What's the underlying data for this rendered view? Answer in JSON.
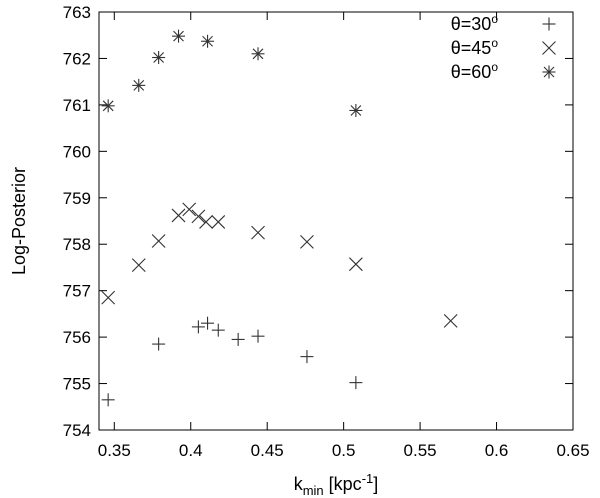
{
  "chart_data": {
    "type": "scatter",
    "title": "",
    "xlabel": {
      "main": "k",
      "sub": "min",
      "unit_open": " [kpc",
      "unit_sup": "-1",
      "unit_close": "]"
    },
    "ylabel": "Log-Posterior",
    "xlim": [
      0.34,
      0.65
    ],
    "ylim": [
      754,
      763
    ],
    "xticks": [
      0.35,
      0.4,
      0.45,
      0.5,
      0.55,
      0.6,
      0.65
    ],
    "xtick_labels": [
      "0.35",
      "0.4",
      "0.45",
      "0.5",
      "0.55",
      "0.6",
      "0.65"
    ],
    "yticks": [
      754,
      755,
      756,
      757,
      758,
      759,
      760,
      761,
      762,
      763
    ],
    "ytick_labels": [
      "754",
      "755",
      "756",
      "757",
      "758",
      "759",
      "760",
      "761",
      "762",
      "763"
    ],
    "grid": false,
    "legend_position": "top-right",
    "series": [
      {
        "name": "θ=30°",
        "label_main": "θ=30",
        "label_sup": "o",
        "marker": "plus",
        "color": "#333333",
        "points": [
          [
            0.346,
            754.65
          ],
          [
            0.379,
            755.85
          ],
          [
            0.405,
            756.22
          ],
          [
            0.411,
            756.3
          ],
          [
            0.418,
            756.15
          ],
          [
            0.431,
            755.95
          ],
          [
            0.444,
            756.02
          ],
          [
            0.476,
            755.58
          ],
          [
            0.508,
            755.02
          ]
        ]
      },
      {
        "name": "θ=45°",
        "label_main": "θ=45",
        "label_sup": "o",
        "marker": "cross",
        "color": "#333333",
        "points": [
          [
            0.346,
            756.85
          ],
          [
            0.366,
            757.55
          ],
          [
            0.379,
            758.07
          ],
          [
            0.392,
            758.62
          ],
          [
            0.399,
            758.75
          ],
          [
            0.405,
            758.6
          ],
          [
            0.41,
            758.48
          ],
          [
            0.418,
            758.48
          ],
          [
            0.444,
            758.25
          ],
          [
            0.476,
            758.05
          ],
          [
            0.508,
            757.57
          ],
          [
            0.57,
            756.35
          ]
        ]
      },
      {
        "name": "θ=60°",
        "label_main": "θ=60",
        "label_sup": "o",
        "marker": "star",
        "color": "#333333",
        "points": [
          [
            0.346,
            760.98
          ],
          [
            0.366,
            761.42
          ],
          [
            0.379,
            762.02
          ],
          [
            0.392,
            762.48
          ],
          [
            0.411,
            762.37
          ],
          [
            0.444,
            762.1
          ],
          [
            0.508,
            760.88
          ]
        ]
      }
    ]
  }
}
